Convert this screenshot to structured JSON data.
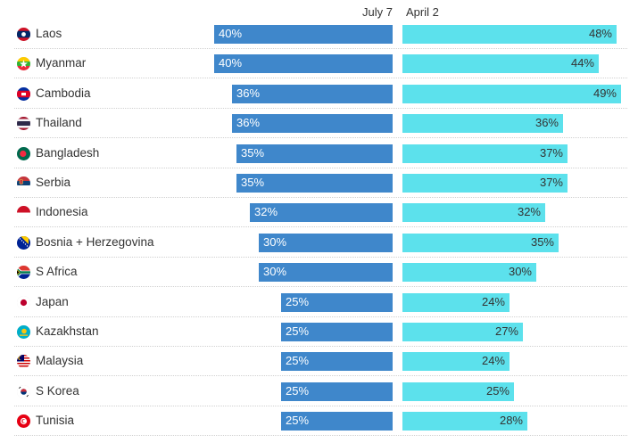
{
  "chart_data": {
    "type": "bar",
    "orientation": "horizontal",
    "categories": [
      "Laos",
      "Myanmar",
      "Cambodia",
      "Thailand",
      "Bangladesh",
      "Serbia",
      "Indonesia",
      "Bosnia + Herzegovina",
      "S Africa",
      "Japan",
      "Kazakhstan",
      "Malaysia",
      "S Korea",
      "Tunisia"
    ],
    "series": [
      {
        "name": "July 7",
        "values": [
          40,
          40,
          36,
          36,
          35,
          35,
          32,
          30,
          30,
          25,
          25,
          25,
          25,
          25
        ]
      },
      {
        "name": "April 2",
        "values": [
          48,
          44,
          49,
          36,
          37,
          37,
          32,
          35,
          30,
          24,
          27,
          24,
          25,
          28
        ]
      }
    ],
    "value_suffix": "%",
    "xlim": [
      0,
      50
    ],
    "colors": {
      "July 7": "#3f87cb",
      "April 2": "#5ce1ec"
    },
    "flag_icons": [
      "laos-flag-icon",
      "myanmar-flag-icon",
      "cambodia-flag-icon",
      "thailand-flag-icon",
      "bangladesh-flag-icon",
      "serbia-flag-icon",
      "indonesia-flag-icon",
      "bosnia-herzegovina-flag-icon",
      "south-africa-flag-icon",
      "japan-flag-icon",
      "kazakhstan-flag-icon",
      "malaysia-flag-icon",
      "south-korea-flag-icon",
      "tunisia-flag-icon"
    ],
    "grid": false
  }
}
